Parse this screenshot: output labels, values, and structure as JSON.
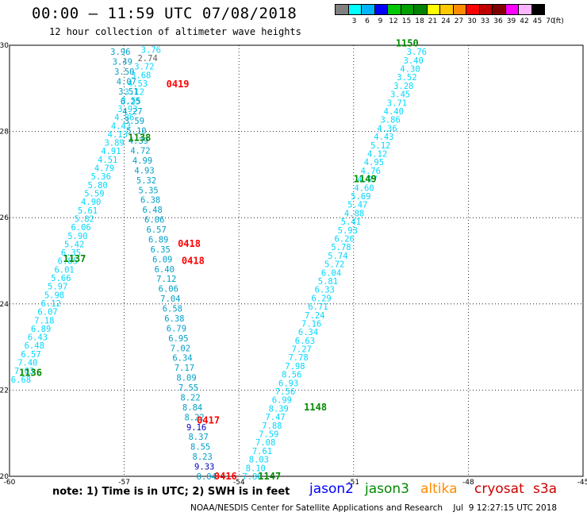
{
  "header": {
    "title": "00:00 – 11:59 UTC 07/08/2018",
    "subtitle": "12 hour collection of altimeter wave heights"
  },
  "colorbar": {
    "unit": "(ft)",
    "swatches": [
      {
        "color": "#808080",
        "label": "3"
      },
      {
        "color": "#00ffff",
        "label": "6"
      },
      {
        "color": "#00b4ff",
        "label": "9"
      },
      {
        "color": "#0000ff",
        "label": "12"
      },
      {
        "color": "#00c800",
        "label": "15"
      },
      {
        "color": "#00a000",
        "label": "18"
      },
      {
        "color": "#008200",
        "label": "21"
      },
      {
        "color": "#ffff00",
        "label": "24"
      },
      {
        "color": "#ffc800",
        "label": "27"
      },
      {
        "color": "#ff8c00",
        "label": "30"
      },
      {
        "color": "#ff0000",
        "label": "33"
      },
      {
        "color": "#c00000",
        "label": "36"
      },
      {
        "color": "#800000",
        "label": "39"
      },
      {
        "color": "#ff00ff",
        "label": "42"
      },
      {
        "color": "#ffb4ff",
        "label": "45"
      },
      {
        "color": "#000000",
        "label": "70"
      }
    ]
  },
  "footer": {
    "note": "note: 1) Time is in UTC; 2) SWH is in feet",
    "credit": "NOAA/NESDIS Center for Satellite Applications and Research    Jul  9 12:27:15 UTC 2018",
    "satellites": [
      {
        "name": "jason2",
        "color": "#0000ff"
      },
      {
        "name": "jason3",
        "color": "#008a00"
      },
      {
        "name": "altika",
        "color": "#ff8c00"
      },
      {
        "name": "cryosat",
        "color": "#cc0000"
      },
      {
        "name": "s3a",
        "color": "#cc0000"
      }
    ]
  },
  "chart_data": {
    "type": "scatter",
    "title": "00:00 – 11:59 UTC 07/08/2018",
    "xlim": [
      -60,
      -45
    ],
    "ylim": [
      20,
      30
    ],
    "x_ticks": [
      -60,
      -57,
      -54,
      -51,
      -48,
      -45
    ],
    "y_ticks": [
      20,
      22,
      24,
      26,
      28,
      30
    ],
    "grid": true,
    "colors": {
      "cyan": "#00d8ff",
      "teal": "#00a0c8",
      "blue": "#0000c0",
      "gray": "#606060",
      "red": "#ff0000",
      "green": "#008a00"
    },
    "tracks": [
      {
        "sat": "jason3",
        "x0": -59.7,
        "y0": 22.25,
        "x1": -56.3,
        "y1": 29.9,
        "color": "cyan",
        "values": [
          "6.68",
          "7.03",
          "7.40",
          "6.57",
          "6.48",
          "6.43",
          "6.89",
          "7.18",
          "6.07",
          "6.12",
          "5.98",
          "5.97",
          "5.66",
          "6.01",
          "6.85",
          "6.35",
          "5.42",
          "5.90",
          "6.06",
          "5.82",
          "5.61",
          "4.90",
          "5.59",
          "5.80",
          "5.36",
          "4.79",
          "4.51",
          "4.91",
          "3.89",
          "4.13",
          "4.43",
          "4.86",
          "3.93",
          "3.55",
          "3.12",
          "4.53",
          "3.68",
          "3.72",
          "2.74",
          "3.76"
        ]
      },
      {
        "sat": "jason3",
        "x0": -54.85,
        "y0": 20.0,
        "x1": -57.1,
        "y1": 29.85,
        "color": "teal",
        "values": [
          "8.04",
          "9.33",
          "8.23",
          "8.55",
          "8.37",
          "9.16",
          "8.22",
          "8.84",
          "8.22",
          "7.55",
          "8.09",
          "7.17",
          "6.34",
          "7.02",
          "6.95",
          "6.79",
          "6.38",
          "6.58",
          "7.04",
          "6.06",
          "7.12",
          "6.40",
          "6.09",
          "6.35",
          "6.89",
          "6.57",
          "6.06",
          "6.48",
          "6.38",
          "5.35",
          "5.32",
          "4.93",
          "4.99",
          "4.72",
          "4.39",
          "5.10",
          "3.59",
          "4.27",
          "6.25",
          "3.51",
          "4.07",
          "3.50",
          "3.49",
          "3.96"
        ]
      },
      {
        "sat": "jason3",
        "x0": -53.65,
        "y0": 20.0,
        "x1": -49.35,
        "y1": 29.85,
        "color": "cyan",
        "values": [
          "7.88",
          "8.10",
          "8.03",
          "7.61",
          "7.08",
          "7.59",
          "7.88",
          "7.47",
          "8.39",
          "6.99",
          "7.56",
          "6.93",
          "8.56",
          "7.98",
          "7.78",
          "7.27",
          "6.63",
          "6.34",
          "7.16",
          "7.24",
          "6.71",
          "6.29",
          "6.33",
          "5.81",
          "6.04",
          "5.72",
          "5.74",
          "5.78",
          "6.26",
          "5.93",
          "5.41",
          "4.88",
          "5.47",
          "5.69",
          "4.60",
          "4.97",
          "4.76",
          "4.95",
          "4.12",
          "5.12",
          "4.43",
          "4.36",
          "3.86",
          "4.40",
          "3.71",
          "3.45",
          "3.28",
          "3.52",
          "4.30",
          "3.40",
          "3.76"
        ]
      }
    ],
    "pass_labels": [
      {
        "text": "1136",
        "x": -59.45,
        "y": 22.4,
        "color": "green"
      },
      {
        "text": "1137",
        "x": -58.3,
        "y": 25.05,
        "color": "green"
      },
      {
        "text": "1138",
        "x": -56.6,
        "y": 27.85,
        "color": "green"
      },
      {
        "text": "1147",
        "x": -53.2,
        "y": 20.0,
        "color": "green"
      },
      {
        "text": "1148",
        "x": -52.0,
        "y": 21.6,
        "color": "green"
      },
      {
        "text": "1149",
        "x": -50.7,
        "y": 26.9,
        "color": "green"
      },
      {
        "text": "1150",
        "x": -49.6,
        "y": 30.05,
        "color": "green"
      },
      {
        "text": "0416",
        "x": -54.35,
        "y": 20.0,
        "color": "red"
      },
      {
        "text": "0417",
        "x": -54.8,
        "y": 21.3,
        "color": "red"
      },
      {
        "text": "0418",
        "x": -55.3,
        "y": 25.4,
        "color": "red"
      },
      {
        "text": "0418",
        "x": -55.2,
        "y": 25.0,
        "color": "red"
      },
      {
        "text": "0419",
        "x": -55.6,
        "y": 29.1,
        "color": "red"
      }
    ]
  }
}
